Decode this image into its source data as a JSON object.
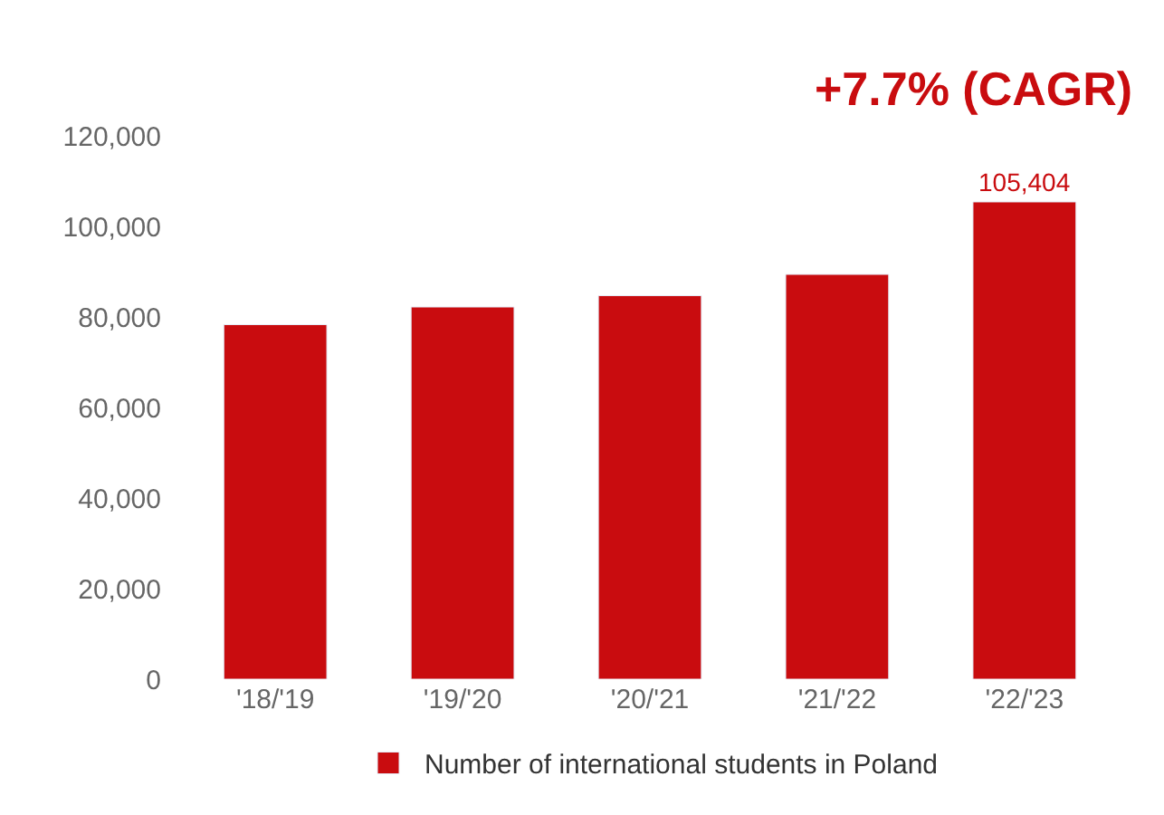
{
  "chart_data": {
    "type": "bar",
    "categories": [
      "'18/'19",
      "'19/'20",
      "'20/'21",
      "'21/'22",
      "'22/'23"
    ],
    "series": [
      {
        "name": "Number of international students in Poland",
        "color": "#c90c0f",
        "values": [
          78300,
          82200,
          84700,
          89400,
          105404
        ],
        "value_labels": [
          null,
          null,
          null,
          null,
          "105,404"
        ]
      }
    ],
    "ylim": [
      0,
      120000
    ],
    "yticks": [
      {
        "value": 0,
        "label": "0"
      },
      {
        "value": 20000,
        "label": "20,000"
      },
      {
        "value": 40000,
        "label": "40,000"
      },
      {
        "value": 60000,
        "label": "60,000"
      },
      {
        "value": 80000,
        "label": "80,000"
      },
      {
        "value": 100000,
        "label": "100,000"
      },
      {
        "value": 120000,
        "label": "120,000"
      }
    ],
    "legend": "bottom",
    "annotations": [
      "+7.7% (CAGR)"
    ]
  }
}
